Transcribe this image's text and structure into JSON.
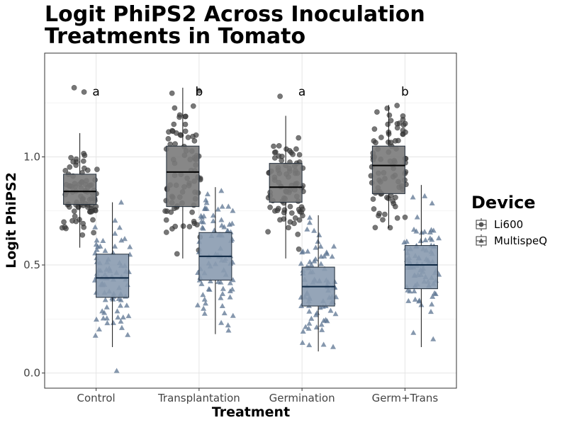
{
  "chart_data": {
    "type": "box",
    "title_lines": [
      "Logit PhiPS2 Across Inoculation",
      "Treatments in Tomato"
    ],
    "xlabel": "Treatment",
    "ylabel": "Logit PhiPS2",
    "categories": [
      "Control",
      "Transplantation",
      "Germination",
      "Germ+Trans"
    ],
    "significance_letters": [
      "a",
      "b",
      "a",
      "b"
    ],
    "ylim": [
      -0.07,
      1.48
    ],
    "yticks": [
      {
        "value": 0.0,
        "label": "0.0"
      },
      {
        "value": 0.5,
        "label": "0.5"
      },
      {
        "value": 1.0,
        "label": "1.0"
      }
    ],
    "grid": true,
    "legend": {
      "title": "Device",
      "position": "right",
      "entries": [
        {
          "label": "Li600",
          "marker": "circle"
        },
        {
          "label": "MultispeQ",
          "marker": "triangle"
        }
      ]
    },
    "series": [
      {
        "name": "Li600",
        "marker": "circle",
        "box_color": "#7a7a7a",
        "point_color": "#3d3d3d",
        "boxes": [
          {
            "category": "Control",
            "whisker_low": 0.58,
            "q1": 0.78,
            "median": 0.84,
            "q3": 0.92,
            "whisker_high": 1.11
          },
          {
            "category": "Transplantation",
            "whisker_low": 0.53,
            "q1": 0.77,
            "median": 0.93,
            "q3": 1.05,
            "whisker_high": 1.32
          },
          {
            "category": "Germination",
            "whisker_low": 0.53,
            "q1": 0.79,
            "median": 0.86,
            "q3": 0.97,
            "whisker_high": 1.19
          },
          {
            "category": "Germ+Trans",
            "whisker_low": 0.67,
            "q1": 0.83,
            "median": 0.96,
            "q3": 1.05,
            "whisker_high": 1.24
          }
        ]
      },
      {
        "name": "MultispeQ",
        "marker": "triangle",
        "box_color": "#8a9bb0",
        "point_color": "#5c7491",
        "boxes": [
          {
            "category": "Control",
            "whisker_low": 0.12,
            "q1": 0.35,
            "median": 0.44,
            "q3": 0.55,
            "whisker_high": 0.79
          },
          {
            "category": "Transplantation",
            "whisker_low": 0.18,
            "q1": 0.43,
            "median": 0.54,
            "q3": 0.65,
            "whisker_high": 0.86
          },
          {
            "category": "Germination",
            "whisker_low": 0.1,
            "q1": 0.31,
            "median": 0.4,
            "q3": 0.49,
            "whisker_high": 0.73
          },
          {
            "category": "Germ+Trans",
            "whisker_low": 0.12,
            "q1": 0.39,
            "median": 0.5,
            "q3": 0.59,
            "whisker_high": 0.87
          }
        ]
      }
    ],
    "outliers": [
      {
        "series": "Li600",
        "category": "Control",
        "y": 1.32
      },
      {
        "series": "Li600",
        "category": "Control",
        "y": 1.3
      },
      {
        "series": "Li600",
        "category": "Germination",
        "y": 1.28
      },
      {
        "series": "MultispeQ",
        "category": "Control",
        "y": 0.01
      }
    ]
  }
}
